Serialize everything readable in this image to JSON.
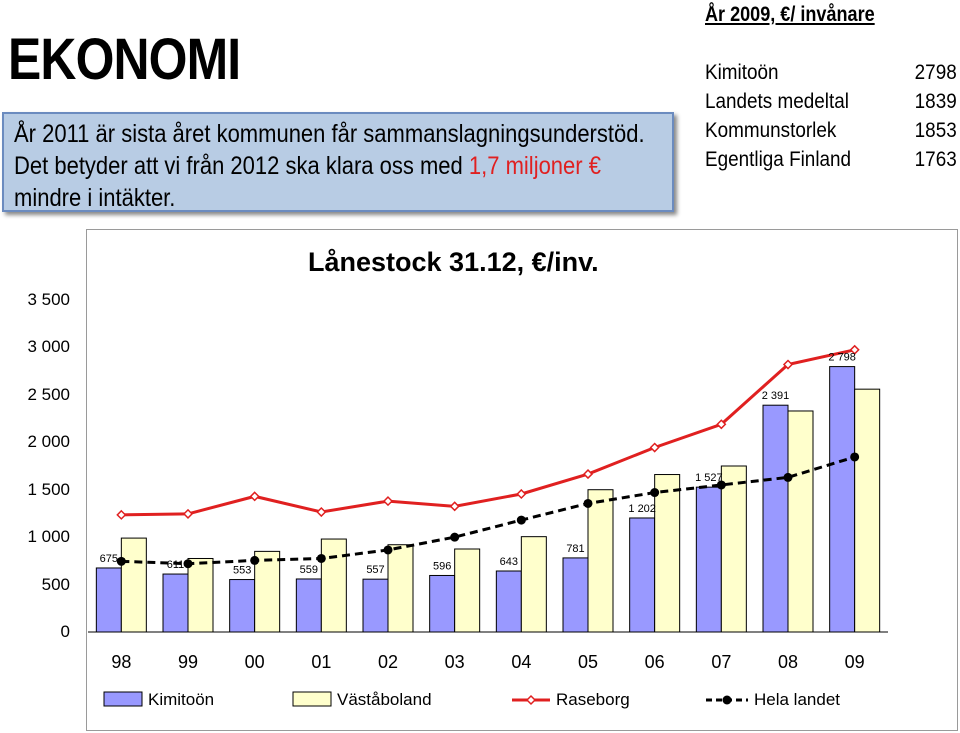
{
  "heading": "EKONOMI",
  "info_box": {
    "line1": "År 2011 är sista året kommunen får sammanslagningsunderstöd.",
    "line2_prefix": "Det betyder att vi från 2012 ska klara oss med ",
    "line2_highlight": "1,7 miljoner €",
    "line3": "mindre i intäkter."
  },
  "stats": {
    "header": "År 2009, €/ invånare",
    "rows": [
      {
        "name": "Kimitoön",
        "value": "2798"
      },
      {
        "name": "Landets medeltal",
        "value": "1839"
      },
      {
        "name": "Kommunstorlek",
        "value": "1853"
      },
      {
        "name": "Egentliga Finland",
        "value": "1763"
      }
    ]
  },
  "colors": {
    "kimitoon": "#9999ff",
    "vastaboland": "#ffffcc",
    "raseborg": "#e02020",
    "hela_landet": "#000000"
  },
  "chart_data": {
    "type": "bar",
    "title": "Lånestock 31.12, €/inv.",
    "categories": [
      "98",
      "99",
      "00",
      "01",
      "02",
      "03",
      "04",
      "05",
      "06",
      "07",
      "08",
      "09"
    ],
    "ylim": [
      0,
      3500
    ],
    "yticks": [
      0,
      500,
      1000,
      1500,
      2000,
      2500,
      3000,
      3500
    ],
    "ytick_labels": [
      "0",
      "500",
      "1 000",
      "1 500",
      "2 000",
      "2 500",
      "3 000",
      "3 500"
    ],
    "legend_position": "bottom",
    "series": [
      {
        "name": "Kimitoön",
        "type": "bar",
        "values": [
          675,
          611,
          553,
          559,
          557,
          596,
          643,
          781,
          1202,
          1527,
          2391,
          2798
        ],
        "labels": [
          "675",
          "611",
          "553",
          "559",
          "557",
          "596",
          "643",
          "781",
          "1 202",
          "1 527",
          "2 391",
          "2 798"
        ]
      },
      {
        "name": "Väståboland",
        "type": "bar",
        "values": [
          990,
          775,
          850,
          980,
          920,
          875,
          1005,
          1500,
          1660,
          1750,
          2330,
          2560
        ]
      },
      {
        "name": "Raseborg",
        "type": "line",
        "values": [
          1235,
          1245,
          1430,
          1265,
          1380,
          1325,
          1455,
          1665,
          1945,
          2190,
          2820,
          2975
        ]
      },
      {
        "name": "Hela landet",
        "type": "line",
        "values": [
          745,
          720,
          755,
          775,
          865,
          1000,
          1180,
          1355,
          1470,
          1550,
          1630,
          1845
        ]
      }
    ]
  }
}
